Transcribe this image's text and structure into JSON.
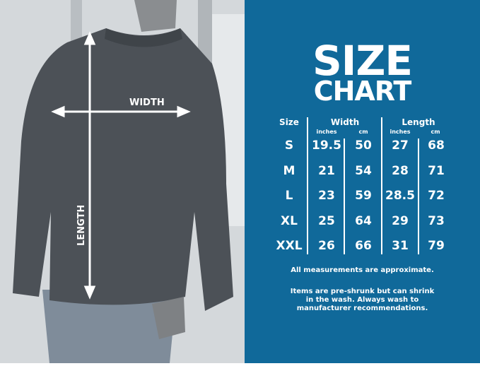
{
  "photo": {
    "width_label": "WIDTH",
    "length_label": "LENGTH"
  },
  "title": {
    "line1": "SIZE",
    "line2": "CHART"
  },
  "table": {
    "size_header": "Size",
    "width_header": "Width",
    "length_header": "Length",
    "units": [
      "inches",
      "cm",
      "inches",
      "cm"
    ],
    "rows": [
      {
        "size": "S",
        "width_in": "19.5",
        "width_cm": "50",
        "length_in": "27",
        "length_cm": "68"
      },
      {
        "size": "M",
        "width_in": "21",
        "width_cm": "54",
        "length_in": "28",
        "length_cm": "71"
      },
      {
        "size": "L",
        "width_in": "23",
        "width_cm": "59",
        "length_in": "28.5",
        "length_cm": "72"
      },
      {
        "size": "XL",
        "width_in": "25",
        "width_cm": "64",
        "length_in": "29",
        "length_cm": "73"
      },
      {
        "size": "XXL",
        "width_in": "26",
        "width_cm": "66",
        "length_in": "31",
        "length_cm": "79"
      }
    ]
  },
  "notes": {
    "approx": "All measurements are approximate.",
    "shrink": "Items are pre-shrunk but can shrink in the wash. Always wash to manufacturer recommendations."
  },
  "colors": {
    "panel": "#10699a",
    "text": "#ffffff"
  }
}
